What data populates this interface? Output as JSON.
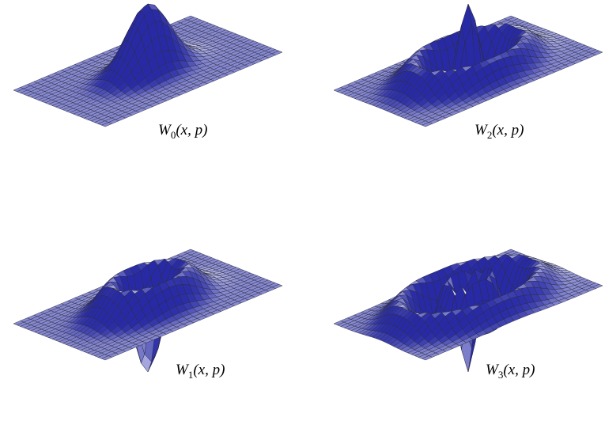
{
  "figure": {
    "panels": [
      {
        "symbol": "W",
        "index": "0",
        "args": "(x, p)"
      },
      {
        "symbol": "W",
        "index": "2",
        "args": "(x, p)"
      },
      {
        "symbol": "W",
        "index": "1",
        "args": "(x, p)"
      },
      {
        "symbol": "W",
        "index": "3",
        "args": "(x, p)"
      }
    ]
  }
}
